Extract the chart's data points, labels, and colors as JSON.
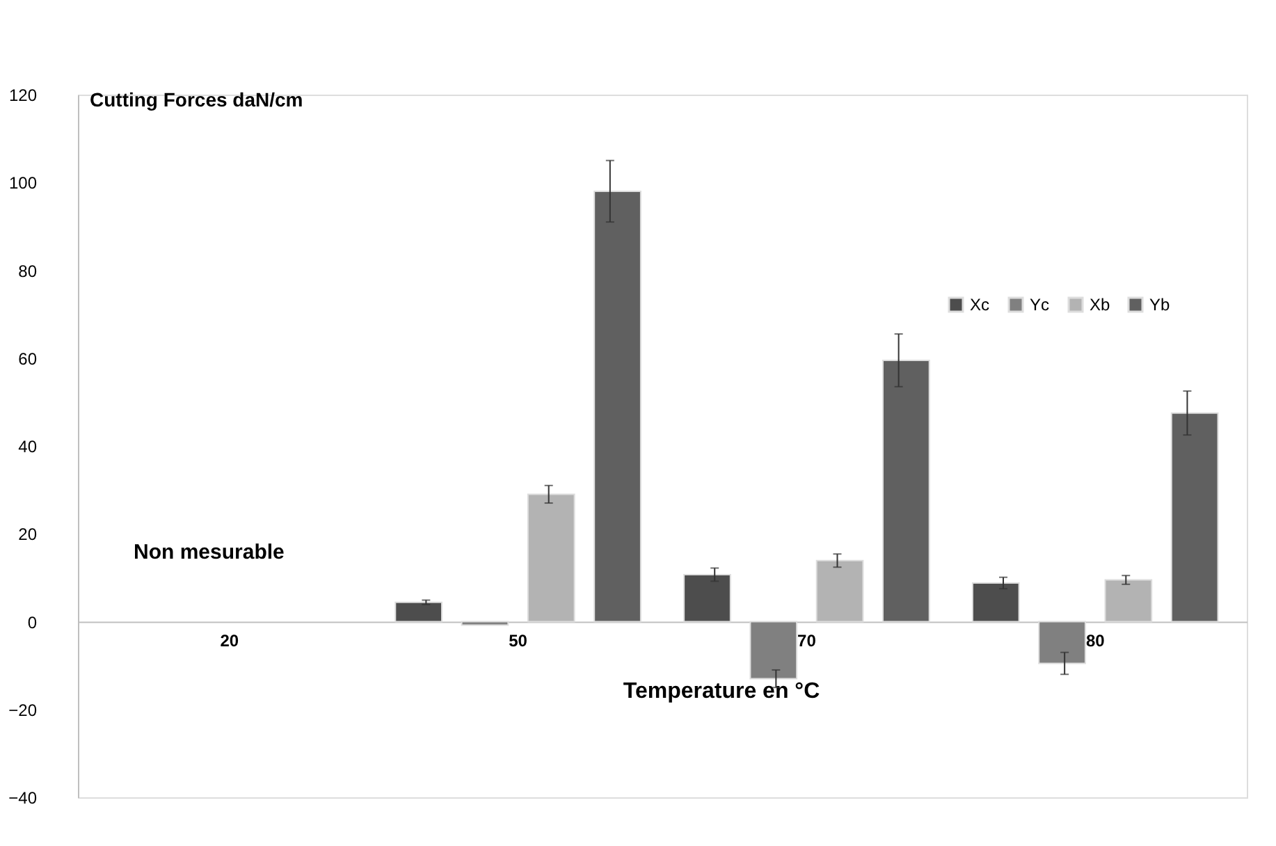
{
  "chart_data": {
    "type": "bar",
    "ylabel": "Cutting Forces daN/cm",
    "xlabel": "Temperature en °C",
    "categories": [
      "20",
      "50",
      "70",
      "80"
    ],
    "series": [
      {
        "name": "Xc",
        "color": "#4d4d4d",
        "values": [
          null,
          4.4,
          10.7,
          8.8
        ],
        "errors": [
          null,
          0.5,
          1.5,
          1.3
        ]
      },
      {
        "name": "Yc",
        "color": "#808080",
        "values": [
          null,
          -0.8,
          -13,
          -9.5
        ],
        "errors": [
          null,
          null,
          2,
          2.5
        ]
      },
      {
        "name": "Xb",
        "color": "#b3b3b3",
        "values": [
          null,
          29,
          13.9,
          9.5
        ],
        "errors": [
          null,
          2,
          1.5,
          1
        ]
      },
      {
        "name": "Yb",
        "color": "#606060",
        "values": [
          null,
          98,
          59.5,
          47.5
        ],
        "errors": [
          null,
          7,
          6,
          5
        ]
      }
    ],
    "annotations": [
      "Non mesurable"
    ],
    "ylim": [
      -40,
      120
    ],
    "yticks": [
      -40,
      -20,
      0,
      20,
      40,
      60,
      80,
      100,
      120
    ],
    "grid": false,
    "legend": "right"
  }
}
